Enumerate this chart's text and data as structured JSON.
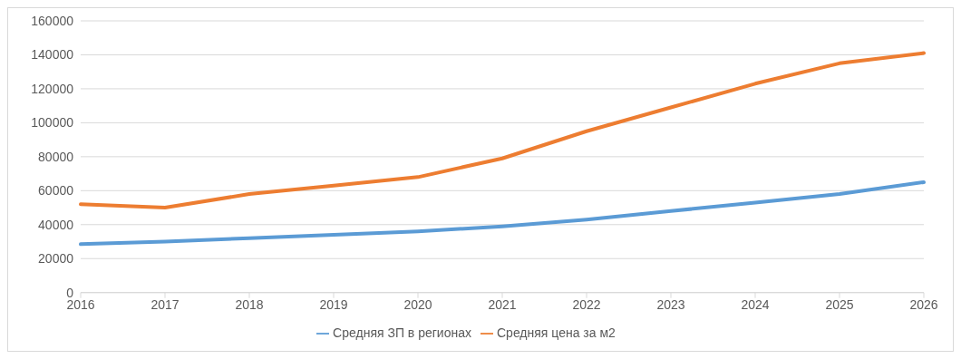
{
  "chart_data": {
    "type": "line",
    "categories": [
      "2016",
      "2017",
      "2018",
      "2019",
      "2020",
      "2021",
      "2022",
      "2023",
      "2024",
      "2025",
      "2026"
    ],
    "series": [
      {
        "name": "Средняя ЗП в регионах",
        "color": "#5b9bd5",
        "values": [
          28500,
          30000,
          32000,
          34000,
          36000,
          39000,
          43000,
          48000,
          53000,
          58000,
          65000
        ]
      },
      {
        "name": "Средняя цена за м2",
        "color": "#ed7d31",
        "values": [
          52000,
          50000,
          58000,
          63000,
          68000,
          79000,
          95000,
          109000,
          123000,
          135000,
          141000
        ]
      }
    ],
    "ylim": [
      0,
      160000
    ],
    "yticks": [
      0,
      20000,
      40000,
      60000,
      80000,
      100000,
      120000,
      140000,
      160000
    ],
    "grid": "y",
    "legend": "bottom",
    "marker": "none",
    "line_style": "solid"
  }
}
